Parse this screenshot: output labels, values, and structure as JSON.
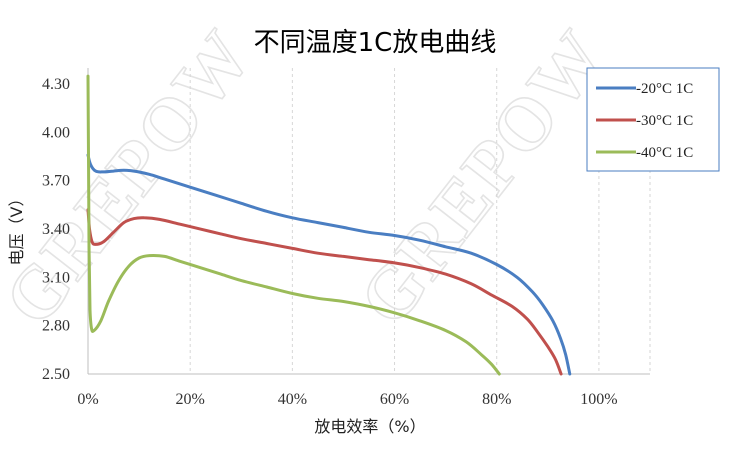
{
  "watermark": "GREPOW",
  "chart_data": {
    "type": "line",
    "title": "不同温度1C放电曲线",
    "xlabel": "放电效率（%）",
    "ylabel": "电压（V）",
    "xlim": [
      0,
      110
    ],
    "ylim": [
      2.5,
      4.4
    ],
    "x_ticks": [
      "0%",
      "20%",
      "40%",
      "60%",
      "80%",
      "100%"
    ],
    "y_ticks": [
      "2.50",
      "2.80",
      "3.10",
      "3.40",
      "3.70",
      "4.00",
      "4.30"
    ],
    "grid": "vertical dashed",
    "legend_position": "top-right",
    "series": [
      {
        "name": "-20°C 1C",
        "color": "#4A7EC2",
        "points": [
          [
            0,
            3.86
          ],
          [
            0.5,
            3.8
          ],
          [
            1.5,
            3.76
          ],
          [
            3,
            3.755
          ],
          [
            5,
            3.76
          ],
          [
            7,
            3.765
          ],
          [
            9,
            3.76
          ],
          [
            12,
            3.74
          ],
          [
            15,
            3.71
          ],
          [
            20,
            3.66
          ],
          [
            25,
            3.61
          ],
          [
            30,
            3.56
          ],
          [
            35,
            3.51
          ],
          [
            40,
            3.47
          ],
          [
            45,
            3.44
          ],
          [
            50,
            3.41
          ],
          [
            55,
            3.38
          ],
          [
            60,
            3.36
          ],
          [
            65,
            3.33
          ],
          [
            70,
            3.29
          ],
          [
            75,
            3.25
          ],
          [
            80,
            3.18
          ],
          [
            84,
            3.1
          ],
          [
            87,
            3.01
          ],
          [
            89,
            2.93
          ],
          [
            91,
            2.83
          ],
          [
            92.5,
            2.72
          ],
          [
            93.5,
            2.62
          ],
          [
            94.3,
            2.5
          ]
        ]
      },
      {
        "name": "-30°C 1C",
        "color": "#C0504D",
        "points": [
          [
            0,
            3.52
          ],
          [
            0.3,
            3.4
          ],
          [
            0.8,
            3.32
          ],
          [
            1.5,
            3.305
          ],
          [
            3,
            3.32
          ],
          [
            5,
            3.38
          ],
          [
            7,
            3.44
          ],
          [
            9,
            3.465
          ],
          [
            11,
            3.47
          ],
          [
            14,
            3.46
          ],
          [
            18,
            3.43
          ],
          [
            22,
            3.4
          ],
          [
            26,
            3.37
          ],
          [
            30,
            3.34
          ],
          [
            35,
            3.31
          ],
          [
            40,
            3.28
          ],
          [
            45,
            3.25
          ],
          [
            50,
            3.23
          ],
          [
            55,
            3.21
          ],
          [
            60,
            3.19
          ],
          [
            65,
            3.16
          ],
          [
            70,
            3.12
          ],
          [
            75,
            3.06
          ],
          [
            79,
            2.99
          ],
          [
            83,
            2.92
          ],
          [
            86,
            2.84
          ],
          [
            88,
            2.76
          ],
          [
            90,
            2.67
          ],
          [
            91.5,
            2.59
          ],
          [
            92.6,
            2.5
          ]
        ]
      },
      {
        "name": "-40°C 1C",
        "color": "#9BBB59",
        "points": [
          [
            0,
            4.35
          ],
          [
            0.1,
            3.85
          ],
          [
            0.2,
            3.3
          ],
          [
            0.4,
            2.9
          ],
          [
            0.7,
            2.78
          ],
          [
            1.2,
            2.77
          ],
          [
            2.5,
            2.83
          ],
          [
            4,
            2.95
          ],
          [
            6,
            3.08
          ],
          [
            8,
            3.17
          ],
          [
            10,
            3.22
          ],
          [
            12,
            3.235
          ],
          [
            15,
            3.23
          ],
          [
            18,
            3.2
          ],
          [
            22,
            3.16
          ],
          [
            26,
            3.12
          ],
          [
            30,
            3.08
          ],
          [
            35,
            3.04
          ],
          [
            40,
            3.0
          ],
          [
            45,
            2.97
          ],
          [
            50,
            2.95
          ],
          [
            55,
            2.92
          ],
          [
            60,
            2.88
          ],
          [
            65,
            2.83
          ],
          [
            70,
            2.77
          ],
          [
            74,
            2.7
          ],
          [
            77,
            2.62
          ],
          [
            79,
            2.56
          ],
          [
            80.5,
            2.5
          ]
        ]
      }
    ]
  }
}
